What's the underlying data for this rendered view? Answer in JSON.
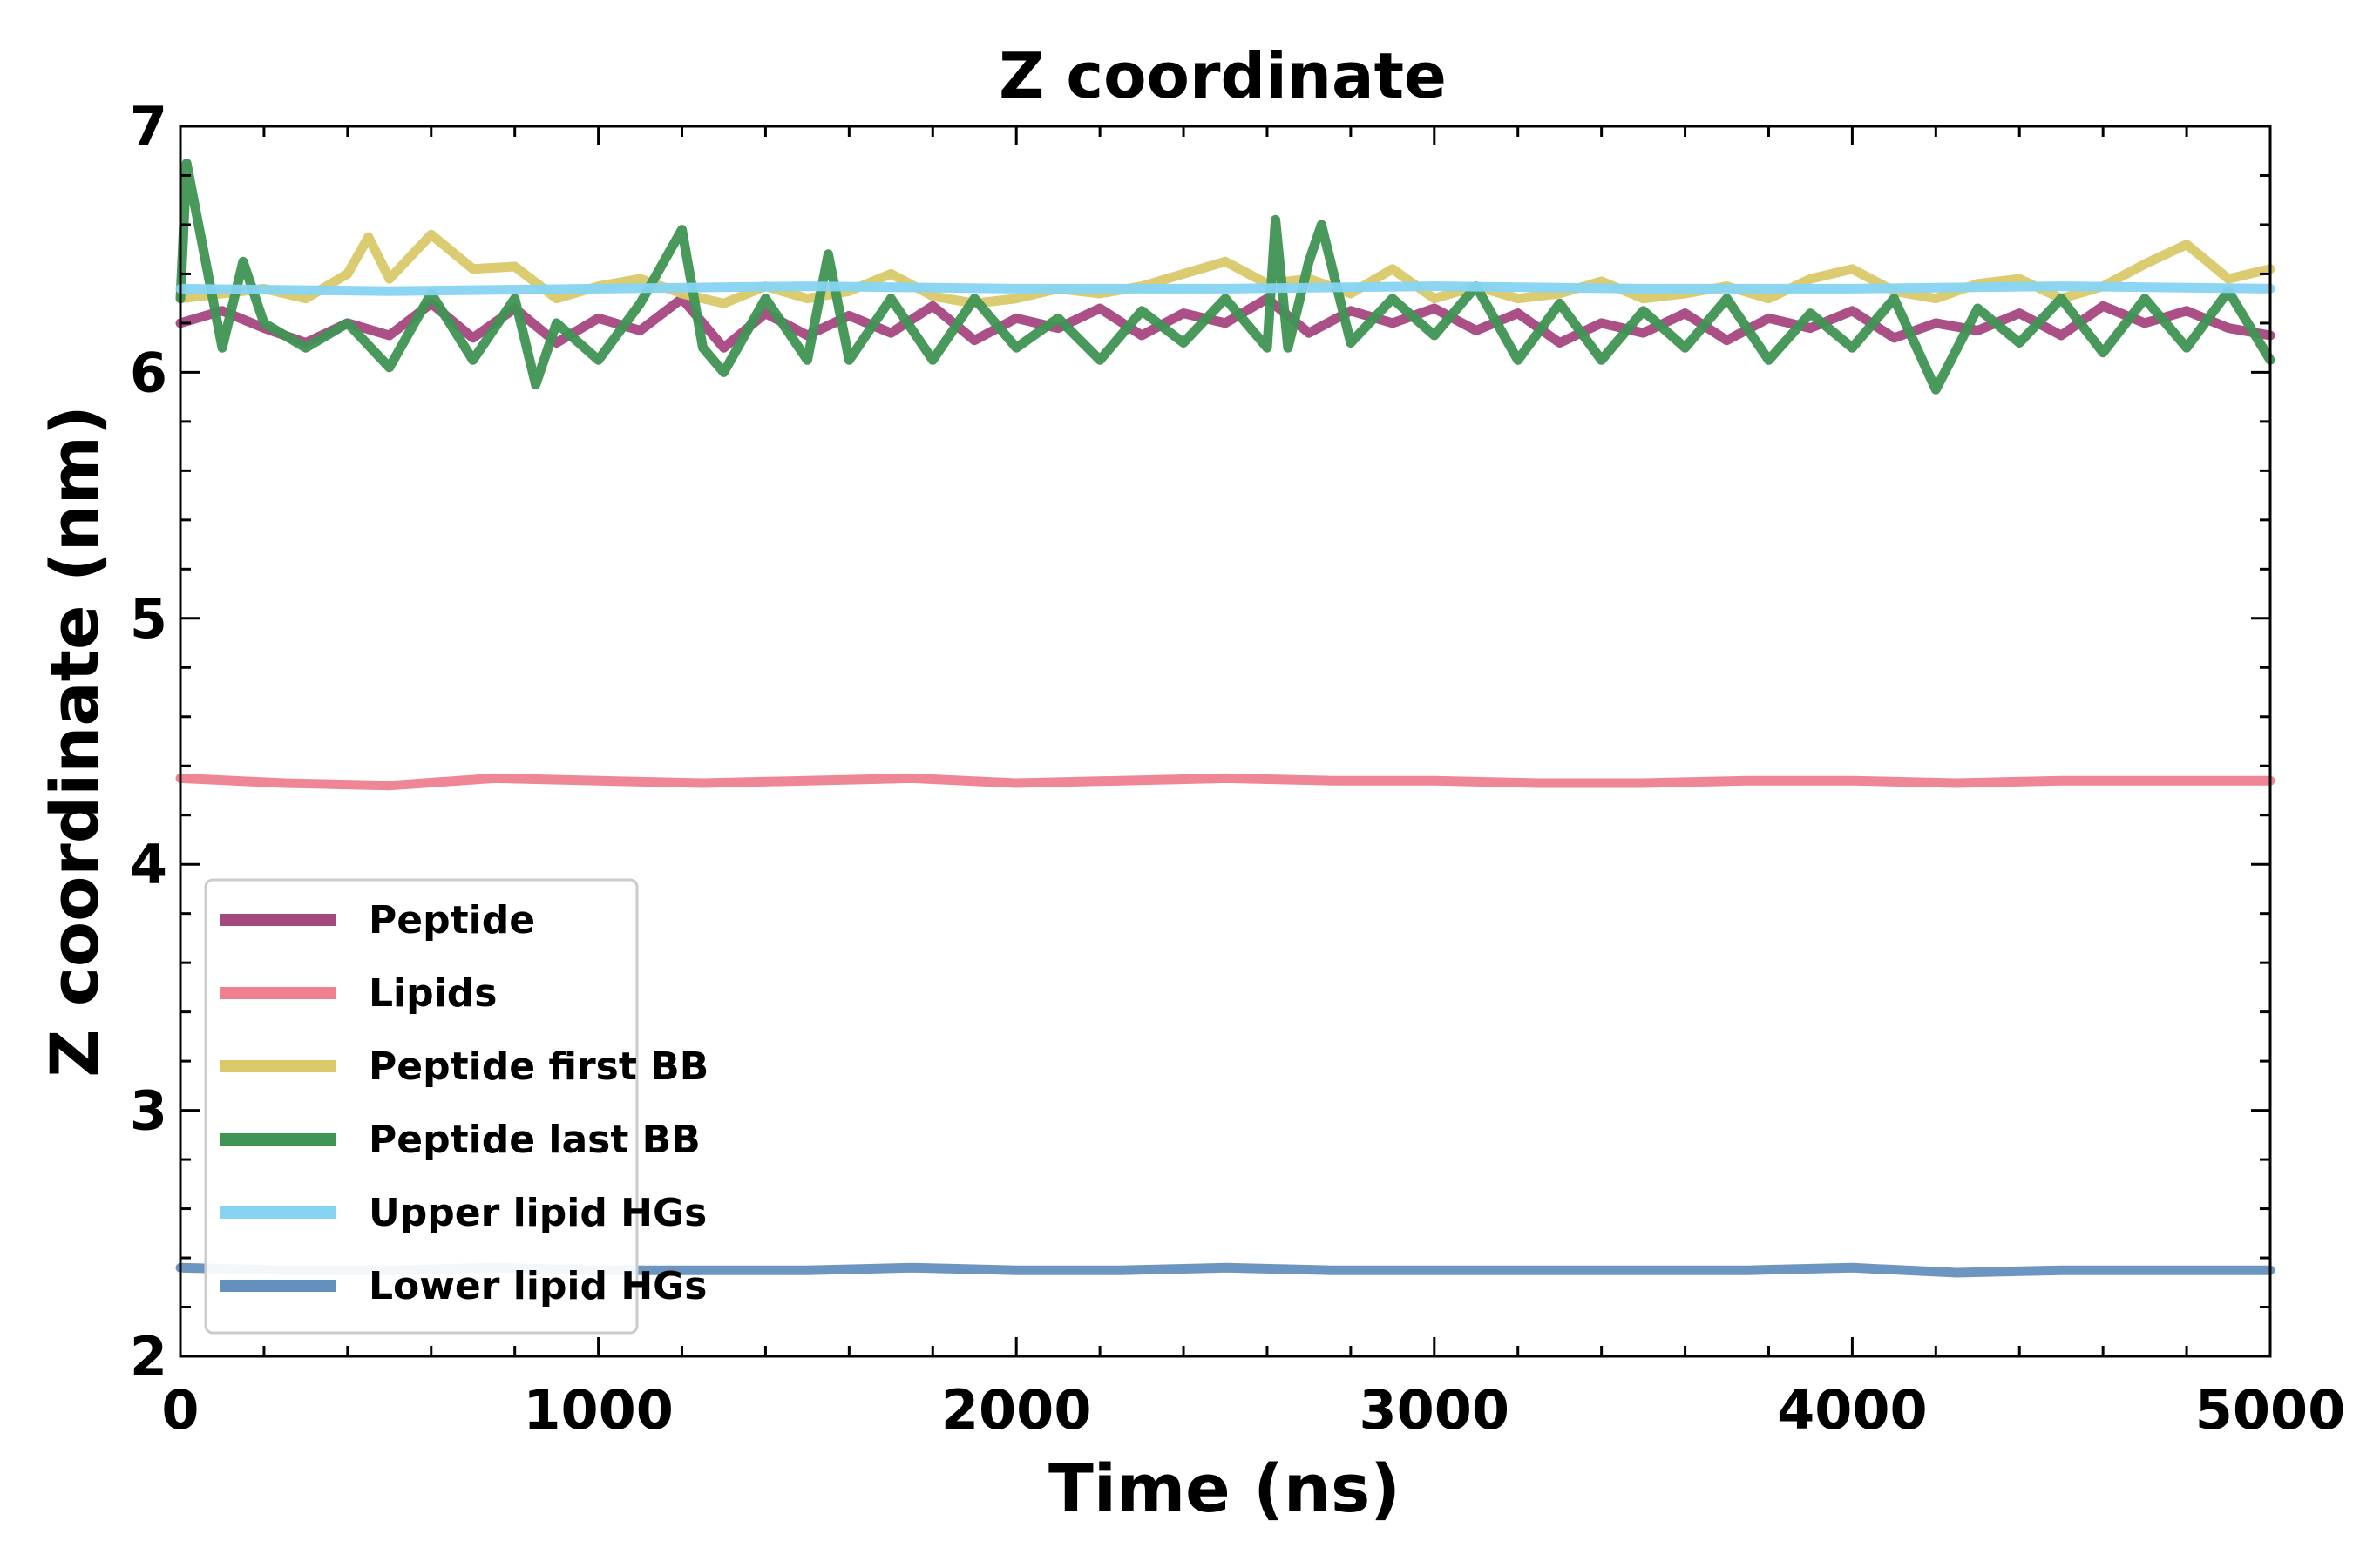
{
  "chart_data": {
    "type": "line",
    "title": "Z coordinate",
    "xlabel": "Time (ns)",
    "ylabel": "Z coordinate (nm)",
    "xlim": [
      0,
      5000
    ],
    "ylim": [
      2,
      7
    ],
    "x_ticks": [
      "0",
      "1000",
      "2000",
      "3000",
      "4000",
      "5000"
    ],
    "y_ticks": [
      "2",
      "3",
      "4",
      "5",
      "6",
      "7"
    ],
    "grid": false,
    "legend_position": "lower-left",
    "series": [
      {
        "name": "Peptide",
        "color": "#a5477f",
        "x": [
          0,
          100,
          200,
          300,
          400,
          500,
          600,
          700,
          800,
          900,
          1000,
          1100,
          1200,
          1300,
          1400,
          1500,
          1600,
          1700,
          1800,
          1900,
          2000,
          2100,
          2200,
          2300,
          2400,
          2500,
          2600,
          2700,
          2800,
          2900,
          3000,
          3100,
          3200,
          3300,
          3400,
          3500,
          3600,
          3700,
          3800,
          3900,
          4000,
          4100,
          4200,
          4300,
          4400,
          4500,
          4600,
          4700,
          4800,
          4900,
          5000
        ],
        "y": [
          6.2,
          6.25,
          6.18,
          6.12,
          6.2,
          6.15,
          6.28,
          6.14,
          6.26,
          6.12,
          6.22,
          6.17,
          6.3,
          6.1,
          6.24,
          6.15,
          6.23,
          6.16,
          6.27,
          6.13,
          6.22,
          6.18,
          6.26,
          6.15,
          6.24,
          6.2,
          6.3,
          6.16,
          6.25,
          6.2,
          6.26,
          6.17,
          6.24,
          6.12,
          6.2,
          6.16,
          6.24,
          6.13,
          6.22,
          6.18,
          6.25,
          6.14,
          6.2,
          6.17,
          6.24,
          6.15,
          6.27,
          6.2,
          6.25,
          6.18,
          6.15
        ]
      },
      {
        "name": "Lipids",
        "color": "#ee8090",
        "x": [
          0,
          250,
          500,
          750,
          1000,
          1250,
          1500,
          1750,
          2000,
          2250,
          2500,
          2750,
          3000,
          3250,
          3500,
          3750,
          4000,
          4250,
          4500,
          4750,
          5000
        ],
        "y": [
          4.35,
          4.33,
          4.32,
          4.35,
          4.34,
          4.33,
          4.34,
          4.35,
          4.33,
          4.34,
          4.35,
          4.34,
          4.34,
          4.33,
          4.33,
          4.34,
          4.34,
          4.33,
          4.34,
          4.34,
          4.34
        ]
      },
      {
        "name": "Peptide first BB",
        "color": "#d9c96a",
        "x": [
          0,
          100,
          200,
          300,
          400,
          450,
          500,
          600,
          700,
          800,
          900,
          1000,
          1100,
          1200,
          1300,
          1400,
          1500,
          1600,
          1700,
          1800,
          1900,
          2000,
          2100,
          2200,
          2300,
          2400,
          2500,
          2600,
          2700,
          2800,
          2900,
          3000,
          3100,
          3200,
          3300,
          3400,
          3500,
          3600,
          3700,
          3800,
          3900,
          4000,
          4100,
          4200,
          4300,
          4400,
          4500,
          4600,
          4700,
          4800,
          4900,
          5000
        ],
        "y": [
          6.3,
          6.32,
          6.34,
          6.3,
          6.4,
          6.55,
          6.38,
          6.56,
          6.42,
          6.43,
          6.3,
          6.35,
          6.38,
          6.32,
          6.28,
          6.35,
          6.3,
          6.33,
          6.4,
          6.31,
          6.28,
          6.3,
          6.34,
          6.32,
          6.35,
          6.4,
          6.45,
          6.36,
          6.38,
          6.32,
          6.42,
          6.3,
          6.35,
          6.3,
          6.32,
          6.37,
          6.3,
          6.32,
          6.35,
          6.3,
          6.38,
          6.42,
          6.33,
          6.3,
          6.36,
          6.38,
          6.3,
          6.35,
          6.44,
          6.52,
          6.38,
          6.42
        ]
      },
      {
        "name": "Peptide last BB",
        "color": "#3f9453",
        "x": [
          0,
          15,
          100,
          150,
          200,
          300,
          400,
          500,
          600,
          700,
          800,
          850,
          900,
          1000,
          1100,
          1200,
          1250,
          1300,
          1400,
          1500,
          1550,
          1600,
          1700,
          1800,
          1900,
          2000,
          2100,
          2200,
          2300,
          2400,
          2500,
          2600,
          2620,
          2650,
          2700,
          2730,
          2800,
          2900,
          3000,
          3100,
          3200,
          3300,
          3400,
          3500,
          3600,
          3700,
          3800,
          3900,
          4000,
          4100,
          4200,
          4300,
          4400,
          4500,
          4600,
          4700,
          4800,
          4900,
          5000
        ],
        "y": [
          6.3,
          6.85,
          6.1,
          6.45,
          6.2,
          6.1,
          6.2,
          6.02,
          6.32,
          6.05,
          6.3,
          5.95,
          6.2,
          6.05,
          6.28,
          6.58,
          6.1,
          6.0,
          6.3,
          6.05,
          6.48,
          6.05,
          6.3,
          6.05,
          6.3,
          6.1,
          6.22,
          6.05,
          6.25,
          6.12,
          6.3,
          6.1,
          6.62,
          6.1,
          6.45,
          6.6,
          6.12,
          6.3,
          6.15,
          6.35,
          6.05,
          6.28,
          6.05,
          6.25,
          6.1,
          6.3,
          6.05,
          6.24,
          6.1,
          6.3,
          5.93,
          6.26,
          6.12,
          6.3,
          6.08,
          6.3,
          6.1,
          6.33,
          6.05
        ]
      },
      {
        "name": "Upper lipid HGs",
        "color": "#86d4f2",
        "x": [
          0,
          500,
          1000,
          1500,
          2000,
          2500,
          3000,
          3500,
          4000,
          4500,
          5000
        ],
        "y": [
          6.34,
          6.33,
          6.34,
          6.35,
          6.34,
          6.34,
          6.35,
          6.34,
          6.34,
          6.35,
          6.34
        ]
      },
      {
        "name": "Lower lipid HGs",
        "color": "#6490bd",
        "x": [
          0,
          250,
          500,
          750,
          1000,
          1250,
          1500,
          1750,
          2000,
          2250,
          2500,
          2750,
          3000,
          3250,
          3500,
          3750,
          4000,
          4250,
          4500,
          4750,
          5000
        ],
        "y": [
          2.36,
          2.35,
          2.35,
          2.36,
          2.35,
          2.35,
          2.35,
          2.36,
          2.35,
          2.35,
          2.36,
          2.35,
          2.35,
          2.35,
          2.35,
          2.35,
          2.36,
          2.34,
          2.35,
          2.35,
          2.35
        ]
      }
    ]
  }
}
